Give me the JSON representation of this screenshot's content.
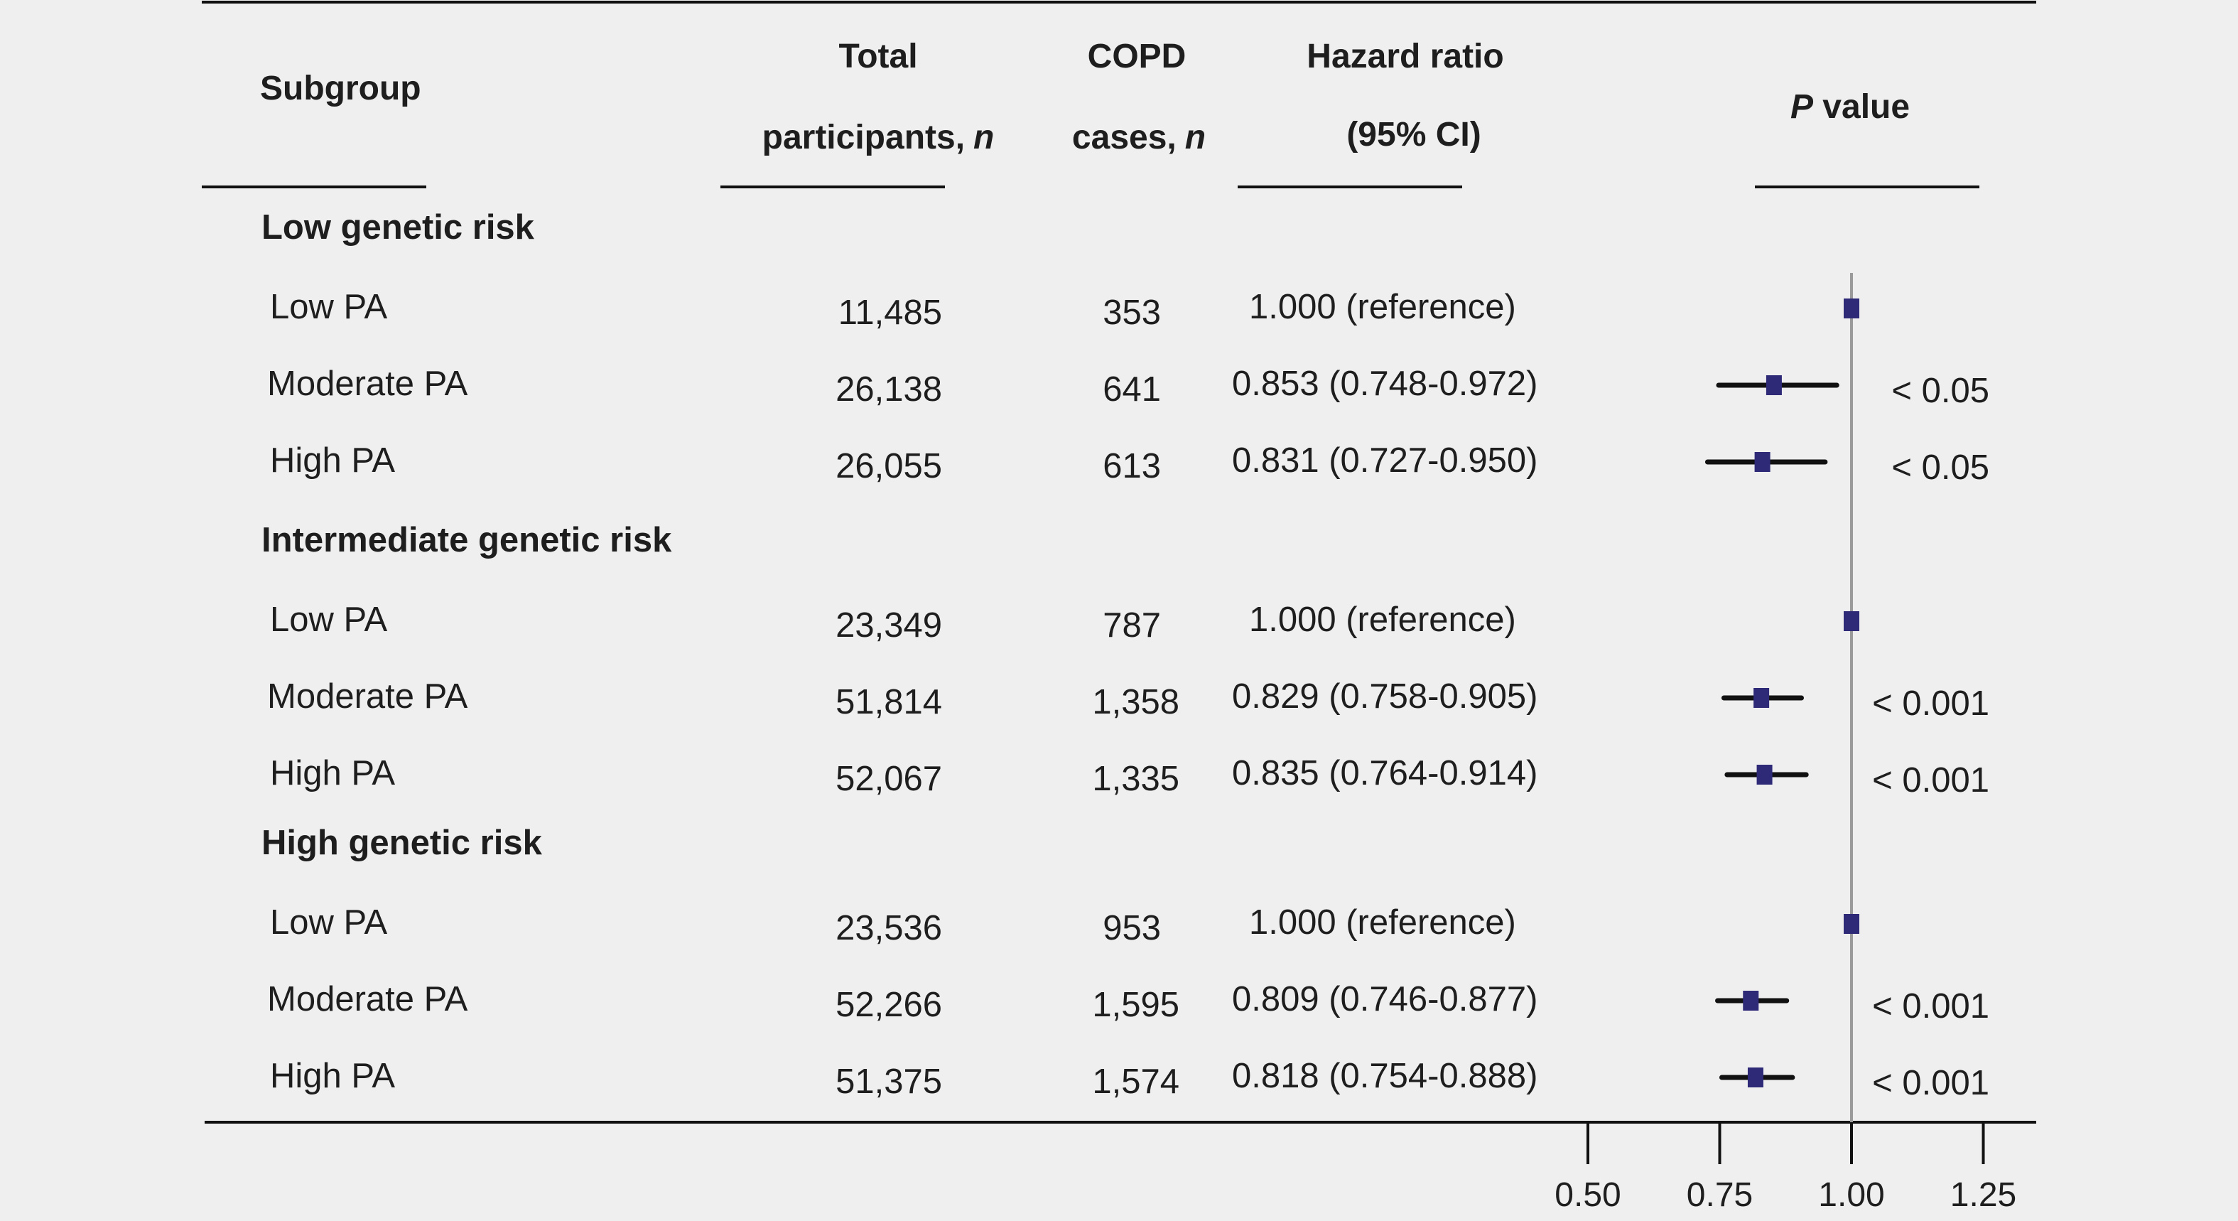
{
  "headers": {
    "subgroup": "Subgroup",
    "total_line1": "Total",
    "total_line2": "participants,",
    "total_n": "n",
    "cases_line1": "COPD",
    "cases_line2": "cases,",
    "cases_n": "n",
    "hr_line1": "Hazard ratio",
    "hr_line2": "(95% CI)",
    "p_italic": "P",
    "p_rest": " value"
  },
  "colors": {
    "background": "#efefef",
    "marker": "#2e2a78",
    "ci_line": "#111111",
    "ref_line": "#9a9a9a",
    "rule": "#111111"
  },
  "chart_data": {
    "type": "forest",
    "x_ticks": [
      "0.50",
      "0.75",
      "1.00",
      "1.25"
    ],
    "x_tick_values": [
      0.5,
      0.75,
      1.0,
      1.25
    ],
    "reference_value": 1.0,
    "groups": [
      {
        "label": "Low genetic risk",
        "rows": [
          {
            "subgroup": "Low PA",
            "total": "11,485",
            "cases": "353",
            "hr_text": "1.000 (reference)",
            "hr": 1.0,
            "lo": null,
            "hi": null,
            "p": ""
          },
          {
            "subgroup": "Moderate PA",
            "total": "26,138",
            "cases": "641",
            "hr_text": "0.853 (0.748-0.972)",
            "hr": 0.853,
            "lo": 0.748,
            "hi": 0.972,
            "p": "< 0.05"
          },
          {
            "subgroup": "High PA",
            "total": "26,055",
            "cases": "613",
            "hr_text": "0.831 (0.727-0.950)",
            "hr": 0.831,
            "lo": 0.727,
            "hi": 0.95,
            "p": "< 0.05"
          }
        ]
      },
      {
        "label": "Intermediate genetic risk",
        "rows": [
          {
            "subgroup": "Low PA",
            "total": "23,349",
            "cases": "787",
            "hr_text": "1.000 (reference)",
            "hr": 1.0,
            "lo": null,
            "hi": null,
            "p": ""
          },
          {
            "subgroup": "Moderate PA",
            "total": "51,814",
            "cases": "1,358",
            "hr_text": "0.829 (0.758-0.905)",
            "hr": 0.829,
            "lo": 0.758,
            "hi": 0.905,
            "p": "< 0.001"
          },
          {
            "subgroup": "High PA",
            "total": "52,067",
            "cases": "1,335",
            "hr_text": "0.835 (0.764-0.914)",
            "hr": 0.835,
            "lo": 0.764,
            "hi": 0.914,
            "p": "< 0.001"
          }
        ]
      },
      {
        "label": "High genetic risk",
        "rows": [
          {
            "subgroup": "Low PA",
            "total": "23,536",
            "cases": "953",
            "hr_text": "1.000 (reference)",
            "hr": 1.0,
            "lo": null,
            "hi": null,
            "p": ""
          },
          {
            "subgroup": "Moderate PA",
            "total": "52,266",
            "cases": "1,595",
            "hr_text": "0.809 (0.746-0.877)",
            "hr": 0.809,
            "lo": 0.746,
            "hi": 0.877,
            "p": "< 0.001"
          },
          {
            "subgroup": "High PA",
            "total": "51,375",
            "cases": "1,574",
            "hr_text": "0.818 (0.754-0.888)",
            "hr": 0.818,
            "lo": 0.754,
            "hi": 0.888,
            "p": "< 0.001"
          }
        ]
      }
    ]
  }
}
